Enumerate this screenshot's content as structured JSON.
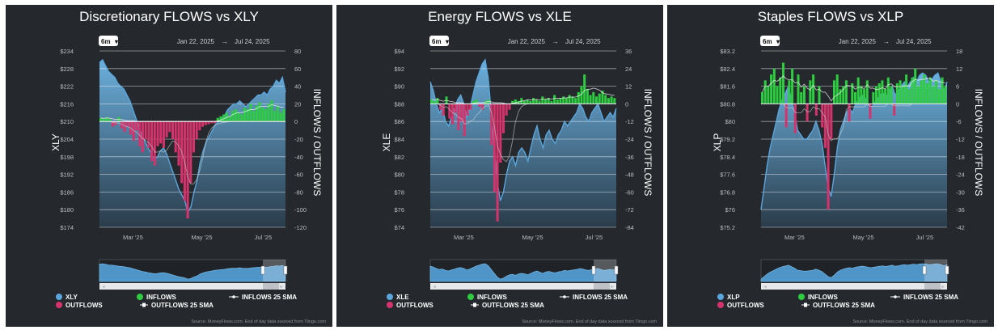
{
  "colors": {
    "panel_bg": "#25292d",
    "price": "#5aa6dd",
    "inflows": "#2ecc40",
    "outflows": "#d6336c",
    "nav_fill": "#4f95c8"
  },
  "range_button": "6m",
  "date_range": {
    "start": "Jan 22, 2025",
    "arrow": "→",
    "end": "Jul 24, 2025"
  },
  "right_axis_label": "INFLOWS / OUTFLOWS",
  "legend": {
    "inflows": "INFLOWS",
    "outflows": "OUTFLOWS",
    "inflows_sma": "INFLOWS 25 SMA",
    "outflows_sma": "OUTFLOWS 25 SMA"
  },
  "source": "Source: MoneyFlows.com. End of day data sourced from Tiingo.com",
  "nav_scroll_label": "|||",
  "chart_data": [
    {
      "type": "line",
      "title": "Discretionary FLOWS vs XLY",
      "ticker": "XLY",
      "x_labels": [
        "Mar '25",
        "May '25",
        "Jul '25"
      ],
      "left_ticks": [
        "$234",
        "$228",
        "$222",
        "$216",
        "$210",
        "$204",
        "$198",
        "$192",
        "$186",
        "$180",
        "$174"
      ],
      "left_range": [
        174,
        234
      ],
      "right_ticks": [
        "80",
        "60",
        "40",
        "20",
        "0",
        "-20",
        "-40",
        "-60",
        "-80",
        "-100",
        "-120"
      ],
      "right_range": [
        -120,
        80
      ],
      "price_series": [
        230,
        231,
        229,
        227,
        226,
        225,
        223,
        222,
        221,
        219,
        217,
        214,
        211,
        208,
        205,
        203,
        201,
        199,
        197,
        198,
        200,
        201,
        199,
        196,
        193,
        190,
        187,
        185,
        183,
        179,
        181,
        186,
        190,
        196,
        200,
        203,
        205,
        207,
        209,
        210,
        211,
        212,
        214,
        215,
        216,
        216,
        217,
        216,
        215,
        216,
        217,
        218,
        219,
        219,
        220,
        219,
        221,
        222,
        224,
        223,
        225,
        220
      ],
      "flow_series": [
        4,
        3,
        5,
        3,
        -6,
        -4,
        5,
        -8,
        -12,
        -6,
        -15,
        -22,
        -10,
        -28,
        -35,
        -20,
        -30,
        -45,
        -50,
        -28,
        -25,
        -30,
        -18,
        -12,
        -20,
        -35,
        -50,
        -70,
        -90,
        -110,
        -70,
        -35,
        -20,
        -10,
        -6,
        -4,
        -3,
        -2,
        -2,
        4,
        6,
        8,
        10,
        6,
        12,
        14,
        10,
        8,
        16,
        14,
        20,
        12,
        18,
        22,
        16,
        14,
        20,
        24,
        12,
        18,
        10,
        14
      ]
    },
    {
      "type": "line",
      "title": "Energy FLOWS vs XLE",
      "ticker": "XLE",
      "x_labels": [
        "Mar '25",
        "May '25",
        "Jul '25"
      ],
      "left_ticks": [
        "$94",
        "$92",
        "$90",
        "$88",
        "$86",
        "$84",
        "$82",
        "$80",
        "$78",
        "$76",
        "$74"
      ],
      "left_range": [
        74,
        94
      ],
      "right_ticks": [
        "36",
        "24",
        "12",
        "0",
        "-12",
        "-24",
        "-36",
        "-48",
        "-60",
        "-72",
        "-84"
      ],
      "right_range": [
        -84,
        36
      ],
      "price_series": [
        90.5,
        89.5,
        88,
        87,
        87.5,
        86,
        85.5,
        86.5,
        87.5,
        88.5,
        89,
        88,
        86.5,
        87.5,
        89,
        90.5,
        91.5,
        92.5,
        93,
        91,
        87,
        83,
        79,
        77,
        78,
        80,
        81.5,
        82,
        81,
        82.5,
        83,
        82.5,
        81.5,
        83,
        84.5,
        85.5,
        84,
        83,
        84.5,
        85,
        84,
        83.5,
        84.5,
        85,
        86,
        85.5,
        86,
        86.5,
        87,
        88,
        87.5,
        86.5,
        86,
        87,
        87.5,
        88,
        87,
        86,
        86.5,
        87,
        86.5,
        87.5
      ],
      "flow_series": [
        3,
        2,
        4,
        -4,
        -8,
        5,
        -10,
        -14,
        -6,
        -18,
        -12,
        -22,
        -8,
        -4,
        2,
        3,
        -2,
        -4,
        2,
        3,
        -28,
        -60,
        -80,
        -40,
        -20,
        -8,
        -4,
        2,
        3,
        2,
        4,
        2,
        3,
        2,
        4,
        3,
        2,
        5,
        3,
        4,
        2,
        6,
        3,
        4,
        5,
        4,
        6,
        5,
        4,
        8,
        12,
        20,
        10,
        6,
        8,
        5,
        7,
        9,
        6,
        4,
        5,
        4
      ]
    },
    {
      "type": "line",
      "title": "Staples FLOWS vs XLP",
      "ticker": "XLP",
      "x_labels": [
        "Mar '25",
        "May '25",
        "Jul '25"
      ],
      "left_ticks": [
        "$83.2",
        "$82.4",
        "$81.6",
        "$80.8",
        "$80",
        "$79.2",
        "$78.4",
        "$77.6",
        "$76.8",
        "$76",
        "$75.2"
      ],
      "left_range": [
        75.2,
        83.2
      ],
      "right_ticks": [
        "18",
        "12",
        "6",
        "0",
        "-6",
        "-12",
        "-18",
        "-24",
        "-30",
        "-36",
        "-42"
      ],
      "right_range": [
        -42,
        18
      ],
      "price_series": [
        76,
        77,
        78,
        78.8,
        79.4,
        80,
        80.6,
        81,
        81.3,
        81.6,
        81,
        80.4,
        79.6,
        79.4,
        79.2,
        79.2,
        79.4,
        79.6,
        80,
        79.6,
        79,
        78,
        77,
        76.6,
        77.6,
        78.8,
        79.6,
        80,
        80.4,
        80.6,
        80.4,
        80.8,
        81,
        81.2,
        81.1,
        80.8,
        80.6,
        80.8,
        81,
        81.2,
        81.3,
        81.1,
        81.4,
        81.6,
        81.2,
        81.4,
        81.6,
        81.8,
        81.6,
        81.8,
        82,
        81.8,
        82.1,
        82.2,
        82.1,
        81.8,
        81.9,
        82.1,
        82.2,
        81.8,
        81.4,
        81.8
      ],
      "flow_series": [
        4,
        8,
        6,
        10,
        12,
        6,
        9,
        14,
        -8,
        8,
        12,
        -10,
        10,
        4,
        6,
        -6,
        8,
        10,
        -4,
        6,
        -8,
        -15,
        -36,
        -12,
        8,
        10,
        5,
        6,
        8,
        -6,
        7,
        4,
        9,
        6,
        5,
        8,
        -5,
        4,
        6,
        7,
        8,
        5,
        9,
        6,
        -4,
        7,
        8,
        6,
        10,
        5,
        9,
        12,
        6,
        8,
        10,
        7,
        9,
        6,
        8,
        5,
        9,
        6
      ]
    }
  ]
}
